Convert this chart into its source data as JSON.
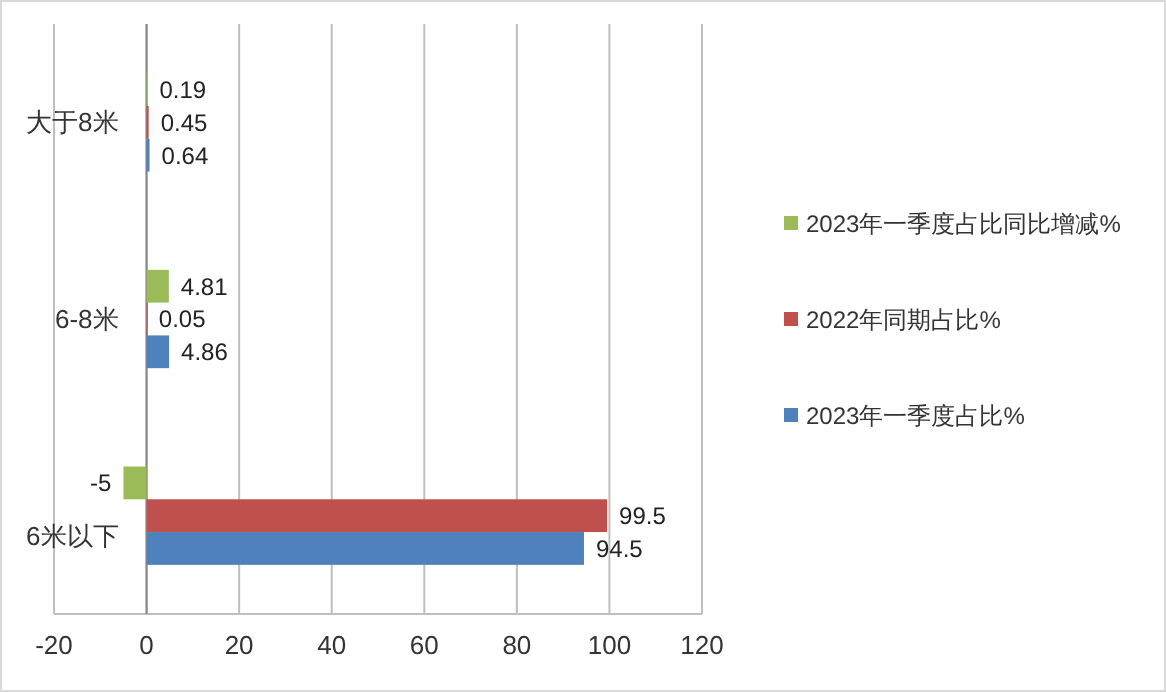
{
  "chart_data": {
    "type": "bar",
    "orientation": "horizontal",
    "categories": [
      "大于8米",
      "6-8米",
      "6米以下"
    ],
    "series": [
      {
        "name": "2023年一季度占比同比增减%",
        "color": "#9bbb59",
        "values": [
          0.19,
          4.81,
          -5
        ]
      },
      {
        "name": "2022年同期占比%",
        "color": "#c0504d",
        "values": [
          0.45,
          0.05,
          99.5
        ]
      },
      {
        "name": "2023年一季度占比%",
        "color": "#4f81bd",
        "values": [
          0.64,
          4.86,
          94.5
        ]
      }
    ],
    "xlim": [
      -20,
      120
    ],
    "xticks": [
      -20,
      0,
      20,
      40,
      60,
      80,
      100,
      120
    ],
    "grid": "x",
    "legend": "right",
    "data_labels": true
  }
}
